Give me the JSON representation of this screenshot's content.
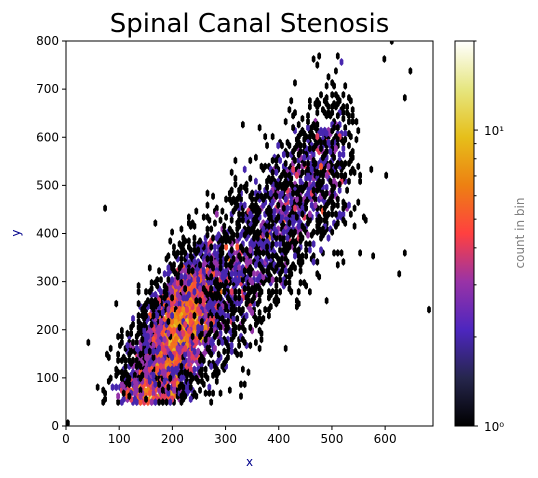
{
  "chart_data": {
    "type": "heatmap",
    "subtype": "hexbin",
    "title": "Spinal Canal Stenosis",
    "xlabel": "x",
    "ylabel": "y",
    "xlim": [
      0,
      690
    ],
    "ylim": [
      0,
      800
    ],
    "xticks": [
      0,
      100,
      200,
      300,
      400,
      500,
      600
    ],
    "yticks": [
      0,
      100,
      200,
      300,
      400,
      500,
      600,
      700,
      800
    ],
    "grid": false,
    "colorbar": {
      "label": "count in bin",
      "scale": "log",
      "range": [
        1,
        20
      ],
      "ticks": [
        {
          "value": 1,
          "label": "10⁰"
        },
        {
          "value": 10,
          "label": "10¹"
        }
      ],
      "minor_ticks": [
        2,
        3,
        4,
        5,
        6,
        7,
        8,
        9,
        20
      ],
      "colormap": "CMRmap"
    },
    "dense_core": {
      "x_center": 215,
      "y_center": 220,
      "max_count": 20
    },
    "outliers": [
      [
        5,
        5
      ],
      [
        40,
        175
      ],
      [
        75,
        455
      ],
      [
        70,
        75
      ],
      [
        610,
        800
      ],
      [
        685,
        240
      ],
      [
        640,
        680
      ],
      [
        645,
        740
      ],
      [
        600,
        765
      ],
      [
        575,
        355
      ],
      [
        640,
        360
      ],
      [
        625,
        315
      ],
      [
        600,
        520
      ],
      [
        560,
        430
      ],
      [
        555,
        360
      ],
      [
        470,
        750
      ]
    ],
    "colors": {
      "axis_label": "#00008b",
      "colorbar_label": "#808080",
      "points": "#000000"
    }
  }
}
